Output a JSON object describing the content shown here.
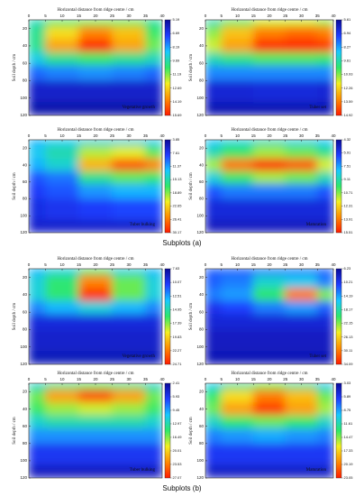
{
  "captions": [
    "Subplots (a)",
    "Subplots (b)"
  ],
  "chart_data": [
    {
      "type": "heatmap",
      "title": "Horizontal distance from ridge centre / cm",
      "ylabel": "Soil depth / cm",
      "label": "Vegetative growth",
      "x": [
        0,
        10,
        20,
        30,
        40
      ],
      "y": [
        10,
        25,
        40,
        55,
        70,
        90,
        120
      ],
      "values": [
        [
          9.5,
          10.5,
          11,
          10.8,
          9.8
        ],
        [
          10,
          12.5,
          14,
          13,
          10.5
        ],
        [
          10,
          13.5,
          15.5,
          13.5,
          11
        ],
        [
          9,
          10,
          10.5,
          10,
          9.5
        ],
        [
          7.5,
          7.8,
          8,
          7.8,
          7.5
        ],
        [
          6,
          6,
          6,
          6,
          6
        ],
        [
          5.5,
          5.5,
          5.5,
          5.5,
          5.5
        ]
      ],
      "xlim": [
        0,
        40
      ],
      "ylim": [
        10,
        120
      ],
      "xticks": [
        0,
        5,
        10,
        15,
        20,
        25,
        30,
        35,
        40
      ],
      "yticks": [
        20,
        40,
        60,
        80,
        100,
        120
      ],
      "zlim": [
        5.19,
        15.69
      ],
      "zticks": [
        5.19,
        6.69,
        8.19,
        9.69,
        11.19,
        12.69,
        14.19,
        15.69
      ],
      "colormap": [
        "#0a0a9a",
        "#1f3dff",
        "#18c8ff",
        "#2ee86a",
        "#f4f020",
        "#ff8a00",
        "#ff1a00"
      ]
    },
    {
      "type": "heatmap",
      "title": "Horizontal distance from ridge centre / cm",
      "ylabel": "Soil depth / cm",
      "label": "Tuber set",
      "x": [
        0,
        10,
        20,
        30,
        40
      ],
      "y": [
        10,
        25,
        40,
        55,
        70,
        90,
        120
      ],
      "values": [
        [
          9.5,
          10.5,
          11.5,
          11.5,
          11
        ],
        [
          11,
          12.5,
          13.5,
          13.8,
          13.5
        ],
        [
          11.5,
          13,
          14.7,
          14.8,
          14.5
        ],
        [
          9.5,
          10,
          10.5,
          10.5,
          10.3
        ],
        [
          8,
          8,
          8,
          8,
          8
        ],
        [
          6.5,
          6.5,
          6.6,
          6.6,
          6.5
        ],
        [
          6,
          6,
          6,
          6,
          6
        ]
      ],
      "xlim": [
        0,
        40
      ],
      "ylim": [
        10,
        120
      ],
      "xticks": [
        0,
        5,
        10,
        15,
        20,
        25,
        30,
        35,
        40
      ],
      "yticks": [
        20,
        40,
        60,
        80,
        100,
        120
      ],
      "zlim": [
        5.61,
        14.92
      ],
      "zticks": [
        5.61,
        6.94,
        8.27,
        9.61,
        10.93,
        12.26,
        13.59,
        14.92
      ],
      "colormap": [
        "#0a0a9a",
        "#1f3dff",
        "#18c8ff",
        "#2ee86a",
        "#f4f020",
        "#ff8a00",
        "#ff1a00"
      ]
    },
    {
      "type": "heatmap",
      "title": "Horizontal distance from ridge centre / cm",
      "ylabel": "Soil depth / cm",
      "label": "Tuber bulking",
      "x": [
        0,
        10,
        20,
        30,
        40
      ],
      "y": [
        10,
        25,
        40,
        55,
        70,
        90,
        120
      ],
      "values": [
        [
          12,
          13,
          14,
          14,
          13
        ],
        [
          13,
          15,
          20,
          21,
          18
        ],
        [
          12,
          14,
          24,
          28,
          26
        ],
        [
          9,
          10,
          16,
          18,
          17
        ],
        [
          8,
          9,
          11,
          12,
          12
        ],
        [
          7,
          7.5,
          8,
          8.5,
          8.5
        ],
        [
          6,
          6,
          6,
          6,
          6
        ]
      ],
      "xlim": [
        0,
        40
      ],
      "ylim": [
        10,
        120
      ],
      "xticks": [
        0,
        5,
        10,
        15,
        20,
        25,
        30,
        35,
        40
      ],
      "yticks": [
        20,
        40,
        60,
        80,
        100,
        120
      ],
      "zlim": [
        3.85,
        30.17
      ],
      "zticks": [
        3.85,
        7.61,
        11.37,
        15.13,
        18.89,
        22.65,
        26.41,
        30.17
      ],
      "colormap": [
        "#0a0a9a",
        "#1f3dff",
        "#18c8ff",
        "#2ee86a",
        "#f4f020",
        "#ff8a00",
        "#ff1a00"
      ]
    },
    {
      "type": "heatmap",
      "title": "Horizontal distance from ridge centre / cm",
      "ylabel": "Soil depth / cm",
      "label": "Maturation",
      "x": [
        0,
        10,
        20,
        30,
        40
      ],
      "y": [
        10,
        25,
        40,
        55,
        70,
        90,
        120
      ],
      "values": [
        [
          8,
          8.5,
          9,
          8.5,
          8
        ],
        [
          9,
          10,
          11,
          10.5,
          9.5
        ],
        [
          11,
          14,
          15.3,
          14.5,
          11.5
        ],
        [
          8.5,
          10,
          11,
          10.5,
          9
        ],
        [
          6.5,
          7,
          7,
          7,
          6.5
        ],
        [
          5.5,
          5.5,
          5.5,
          5.5,
          5.5
        ],
        [
          5,
          5,
          5,
          5,
          5
        ]
      ],
      "xlim": [
        0,
        40
      ],
      "ylim": [
        10,
        120
      ],
      "xticks": [
        0,
        5,
        10,
        15,
        20,
        25,
        30,
        35,
        40
      ],
      "yticks": [
        20,
        40,
        60,
        80,
        100,
        120
      ],
      "zlim": [
        4.32,
        15.51
      ],
      "zticks": [
        4.32,
        5.91,
        7.51,
        9.11,
        10.71,
        12.31,
        13.91,
        15.51
      ],
      "colormap": [
        "#0a0a9a",
        "#1f3dff",
        "#18c8ff",
        "#2ee86a",
        "#f4f020",
        "#ff8a00",
        "#ff1a00"
      ]
    },
    {
      "type": "heatmap",
      "title": "Horizontal distance from ridge centre / cm",
      "ylabel": "Soil depth / cm",
      "label": "Vegetative growth",
      "x": [
        0,
        10,
        20,
        30,
        40
      ],
      "y": [
        10,
        25,
        40,
        55,
        70,
        90,
        120
      ],
      "values": [
        [
          13,
          14,
          16,
          14,
          13
        ],
        [
          14,
          16,
          22,
          17,
          14
        ],
        [
          14,
          16,
          24,
          17,
          14
        ],
        [
          12,
          13,
          14,
          13,
          12
        ],
        [
          9.5,
          9.5,
          9.5,
          9.5,
          9.5
        ],
        [
          9,
          9,
          9,
          9,
          9
        ],
        [
          8.5,
          8.5,
          8.5,
          8.5,
          8.5
        ]
      ],
      "xlim": [
        0,
        40
      ],
      "ylim": [
        10,
        120
      ],
      "xticks": [
        0,
        5,
        10,
        15,
        20,
        25,
        30,
        35,
        40
      ],
      "yticks": [
        20,
        40,
        60,
        80,
        100,
        120
      ],
      "zlim": [
        7.63,
        24.71
      ],
      "zticks": [
        7.63,
        10.07,
        12.51,
        14.95,
        17.39,
        19.83,
        22.27,
        24.71
      ],
      "colormap": [
        "#0a0a9a",
        "#1f3dff",
        "#18c8ff",
        "#2ee86a",
        "#f4f020",
        "#ff8a00",
        "#ff1a00"
      ]
    },
    {
      "type": "heatmap",
      "title": "Horizontal distance from ridge centre / cm",
      "ylabel": "Soil depth / cm",
      "label": "Tuber set",
      "x": [
        0,
        10,
        20,
        30,
        40
      ],
      "y": [
        10,
        25,
        40,
        55,
        70,
        90,
        120
      ],
      "values": [
        [
          12,
          12,
          13,
          13,
          12
        ],
        [
          12,
          13,
          17,
          16,
          13
        ],
        [
          13,
          14,
          20,
          30,
          22
        ],
        [
          10,
          11,
          13,
          14,
          12
        ],
        [
          9,
          9,
          9,
          9,
          9
        ],
        [
          8,
          8,
          8,
          8,
          8
        ],
        [
          7.5,
          7.5,
          7.5,
          7.5,
          7.5
        ]
      ],
      "xlim": [
        0,
        40
      ],
      "ylim": [
        10,
        120
      ],
      "xticks": [
        0,
        5,
        10,
        15,
        20,
        25,
        30,
        35,
        40
      ],
      "yticks": [
        20,
        40,
        60,
        80,
        100,
        120
      ],
      "zlim": [
        6.23,
        34.09
      ],
      "zticks": [
        6.23,
        10.21,
        14.19,
        18.17,
        22.15,
        26.13,
        30.11,
        34.09
      ],
      "colormap": [
        "#0a0a9a",
        "#1f3dff",
        "#18c8ff",
        "#2ee86a",
        "#f4f020",
        "#ff8a00",
        "#ff1a00"
      ]
    },
    {
      "type": "heatmap",
      "title": "Horizontal distance from ridge centre / cm",
      "ylabel": "Soil depth / cm",
      "label": "Tuber bulking",
      "x": [
        0,
        10,
        20,
        30,
        40
      ],
      "y": [
        10,
        25,
        40,
        55,
        70,
        90,
        120
      ],
      "values": [
        [
          12,
          14,
          15,
          14,
          12
        ],
        [
          16,
          22,
          25,
          22,
          16
        ],
        [
          15,
          17,
          18,
          17,
          15
        ],
        [
          12,
          13,
          13,
          13,
          12
        ],
        [
          9,
          9,
          9,
          9,
          9
        ],
        [
          6,
          6,
          6,
          6,
          6
        ],
        [
          4,
          4,
          4,
          4,
          4
        ]
      ],
      "xlim": [
        0,
        40
      ],
      "ylim": [
        10,
        120
      ],
      "xticks": [
        0,
        5,
        10,
        15,
        20,
        25,
        30,
        35,
        40
      ],
      "yticks": [
        20,
        40,
        60,
        80,
        100,
        120
      ],
      "zlim": [
        2.41,
        27.07
      ],
      "zticks": [
        2.41,
        5.93,
        9.45,
        12.97,
        16.49,
        20.01,
        23.53,
        27.07
      ],
      "colormap": [
        "#0a0a9a",
        "#1f3dff",
        "#18c8ff",
        "#2ee86a",
        "#f4f020",
        "#ff8a00",
        "#ff1a00"
      ]
    },
    {
      "type": "heatmap",
      "title": "Horizontal distance from ridge centre / cm",
      "ylabel": "Soil depth / cm",
      "label": "Maturation",
      "x": [
        0,
        10,
        20,
        30,
        40
      ],
      "y": [
        10,
        25,
        40,
        55,
        70,
        90,
        120
      ],
      "values": [
        [
          10,
          12,
          14,
          12,
          10
        ],
        [
          13,
          17,
          20,
          18,
          14
        ],
        [
          14,
          19,
          22,
          19,
          15
        ],
        [
          11,
          13,
          14,
          13,
          11
        ],
        [
          8,
          8.5,
          9,
          8.5,
          8
        ],
        [
          6,
          6,
          6,
          6,
          6
        ],
        [
          4.5,
          4.5,
          4.5,
          4.5,
          4.5
        ]
      ],
      "xlim": [
        0,
        40
      ],
      "ylim": [
        10,
        120
      ],
      "xticks": [
        0,
        5,
        10,
        15,
        20,
        25,
        30,
        35,
        40
      ],
      "yticks": [
        20,
        40,
        60,
        80,
        100,
        120
      ],
      "zlim": [
        3.03,
        23.05
      ],
      "zticks": [
        3.03,
        5.89,
        8.75,
        11.61,
        14.47,
        17.33,
        20.19,
        23.05
      ],
      "colormap": [
        "#0a0a9a",
        "#1f3dff",
        "#18c8ff",
        "#2ee86a",
        "#f4f020",
        "#ff8a00",
        "#ff1a00"
      ]
    }
  ]
}
